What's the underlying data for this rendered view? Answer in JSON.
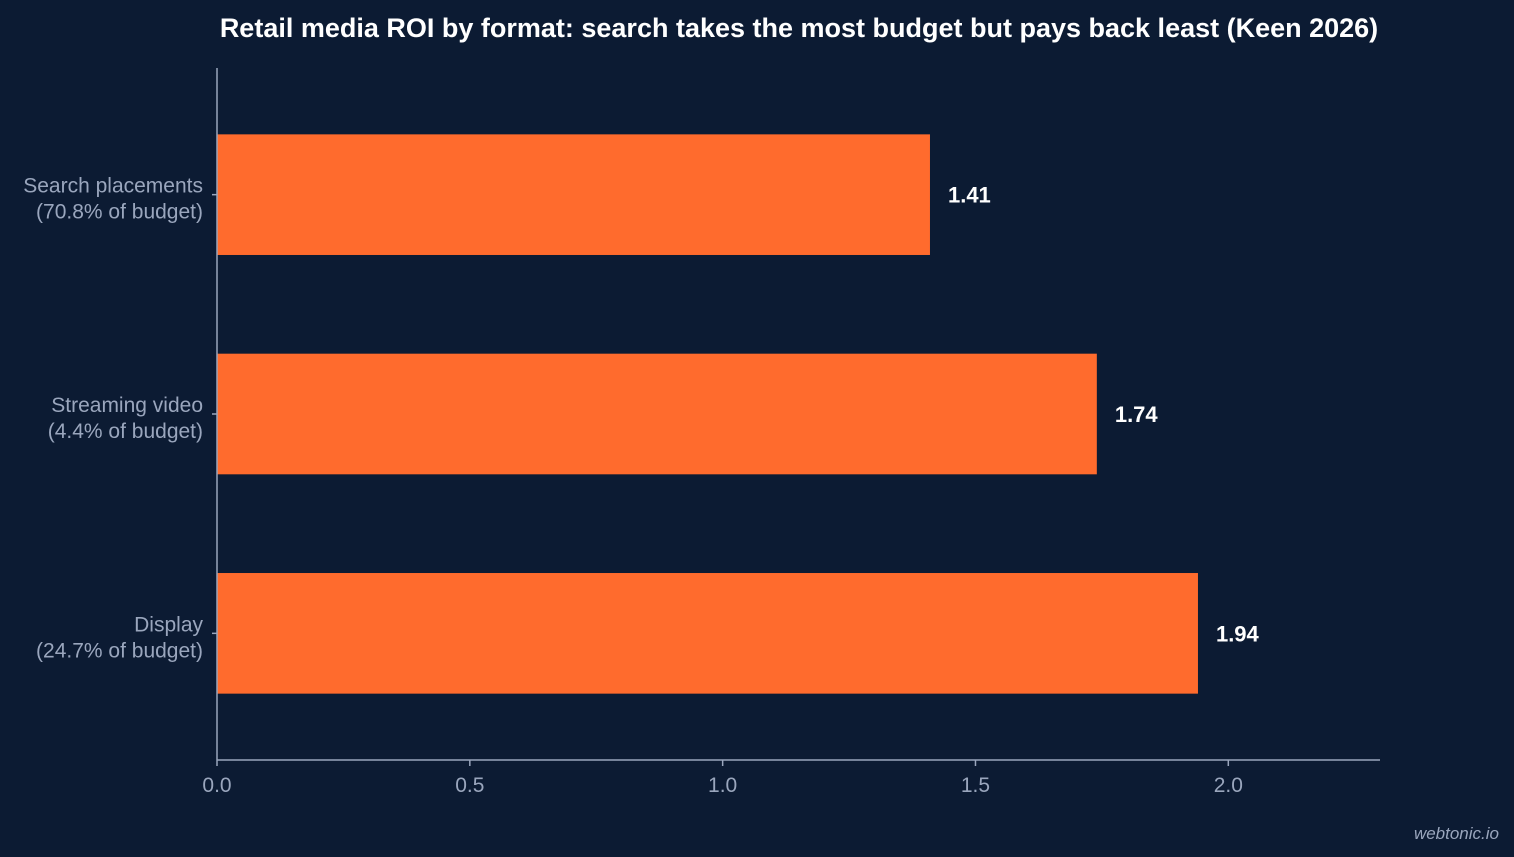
{
  "colors": {
    "background": "#0c1b33",
    "bar": "#ff6b2d",
    "axis": "#9aa6bd",
    "text_primary": "#ffffff",
    "text_secondary": "#9aa6bd"
  },
  "watermark": "webtonic.io",
  "chart_data": {
    "type": "bar",
    "orientation": "horizontal",
    "title": "Retail media ROI by format: search takes the most budget but pays back least (Keen 2026)",
    "xlabel": "",
    "ylabel": "",
    "xlim": [
      0,
      2.3
    ],
    "xticks": [
      0.0,
      0.5,
      1.0,
      1.5,
      2.0
    ],
    "xtick_labels": [
      "0.0",
      "0.5",
      "1.0",
      "1.5",
      "2.0"
    ],
    "grid": false,
    "categories": [
      {
        "name": "Search placements",
        "sub": "(70.8% of budget)"
      },
      {
        "name": "Streaming video",
        "sub": "(4.4% of budget)"
      },
      {
        "name": "Display",
        "sub": "(24.7% of budget)"
      }
    ],
    "values": [
      1.41,
      1.74,
      1.94
    ],
    "value_labels": [
      "1.41",
      "1.74",
      "1.94"
    ]
  }
}
